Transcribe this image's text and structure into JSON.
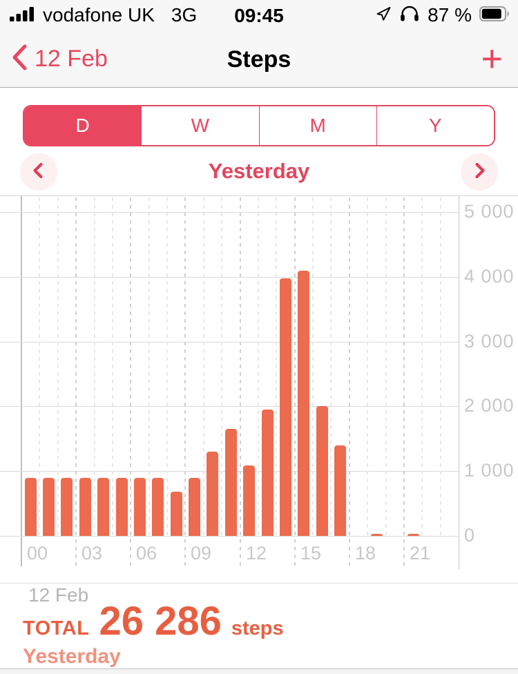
{
  "status_bar": {
    "carrier": "vodafone UK",
    "network": "3G",
    "time": "09:45",
    "battery_level": "87 %",
    "icons": [
      "signal-bars-icon",
      "location-arrow-icon",
      "headphones-icon",
      "battery-icon"
    ]
  },
  "nav_bar": {
    "back_label": "12 Feb",
    "title": "Steps",
    "add_label": "+"
  },
  "segmented_control": {
    "options": [
      "D",
      "W",
      "M",
      "Y"
    ],
    "selected": "D",
    "selected_index": 0
  },
  "period_nav": {
    "label": "Yesterday"
  },
  "chart_data": {
    "type": "bar",
    "categories": [
      "00",
      "01",
      "02",
      "03",
      "04",
      "05",
      "06",
      "07",
      "08",
      "09",
      "10",
      "11",
      "12",
      "13",
      "14",
      "15",
      "16",
      "17",
      "18",
      "19",
      "20",
      "21",
      "22",
      "23"
    ],
    "values": [
      900,
      900,
      900,
      900,
      900,
      900,
      900,
      900,
      680,
      900,
      1300,
      1650,
      1090,
      1950,
      3980,
      4090,
      2000,
      1400,
      0,
      10,
      0,
      36,
      0,
      0
    ],
    "x_tick_labels": [
      "00",
      "03",
      "06",
      "09",
      "12",
      "15",
      "18",
      "21"
    ],
    "y_ticks": [
      0,
      1000,
      2000,
      3000,
      4000,
      5000
    ],
    "y_tick_labels": [
      "0",
      "1 000",
      "2 000",
      "3 000",
      "4 000",
      "5 000"
    ],
    "ylim": [
      0,
      5000
    ],
    "title": "",
    "xlabel": "",
    "ylabel": "",
    "grid": "horizontal solid lines every 1000; vertical dashed line per hour, darker every 3 hours",
    "legend": "none",
    "y_axis_side": "right",
    "bar_color": "#ed6b4f",
    "date_label": "12 Feb"
  },
  "summary": {
    "total_label": "TOTAL",
    "total_value": "26 286",
    "unit": "steps",
    "period": "Yesterday"
  },
  "colors": {
    "accent_red": "#e8465f",
    "accent_orange": "#ed6b4f",
    "accent_orange_light": "#f0937f",
    "chrome_bg": "#f7f7f7",
    "tick_label": "#c8c8c8"
  }
}
